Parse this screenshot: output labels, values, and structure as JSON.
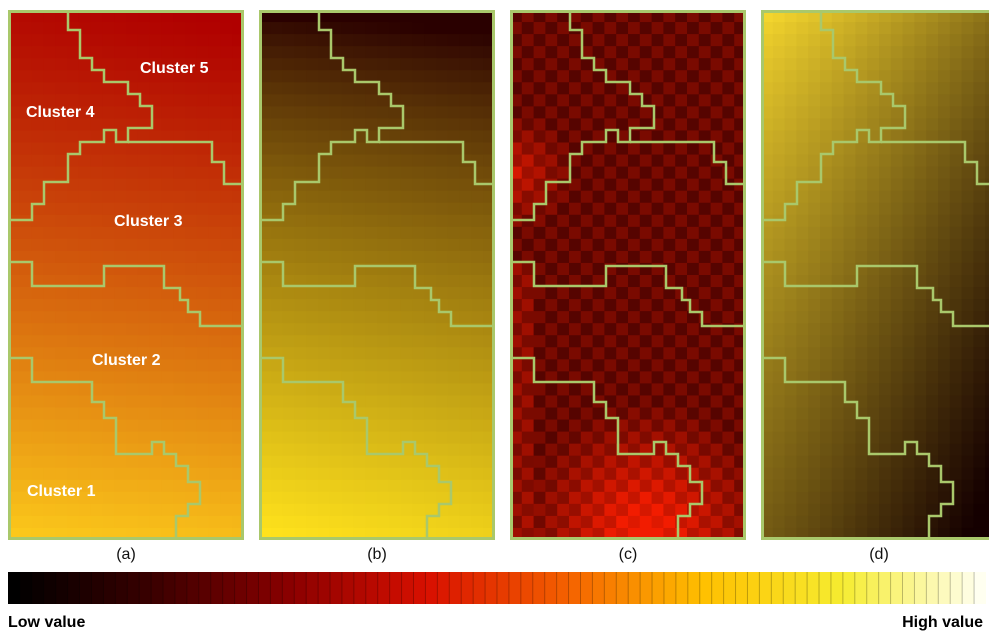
{
  "panels": [
    {
      "caption": "(a)",
      "colors": {
        "from": "#b00000",
        "to": "#ffd21c"
      }
    },
    {
      "caption": "(b)",
      "colors": {
        "from": "#2a0000",
        "to": "#ffe21c"
      }
    },
    {
      "caption": "(c)",
      "colors": {
        "from": "#3a0000",
        "to": "#f21c00"
      }
    },
    {
      "caption": "(d)",
      "colors": {
        "from": "#ffe030",
        "to": "#150000"
      }
    }
  ],
  "clusters": [
    "Cluster 5",
    "Cluster 4",
    "Cluster 3",
    "Cluster 2",
    "Cluster 1"
  ],
  "boundary_color": "#a9c86b",
  "legend": {
    "low_label": "Low value",
    "high_label": "High value",
    "gradient_colors": [
      "#000000",
      "#3a0000",
      "#8a0000",
      "#d81000",
      "#f46000",
      "#ffc000",
      "#f6ec30",
      "#fffff0"
    ]
  }
}
